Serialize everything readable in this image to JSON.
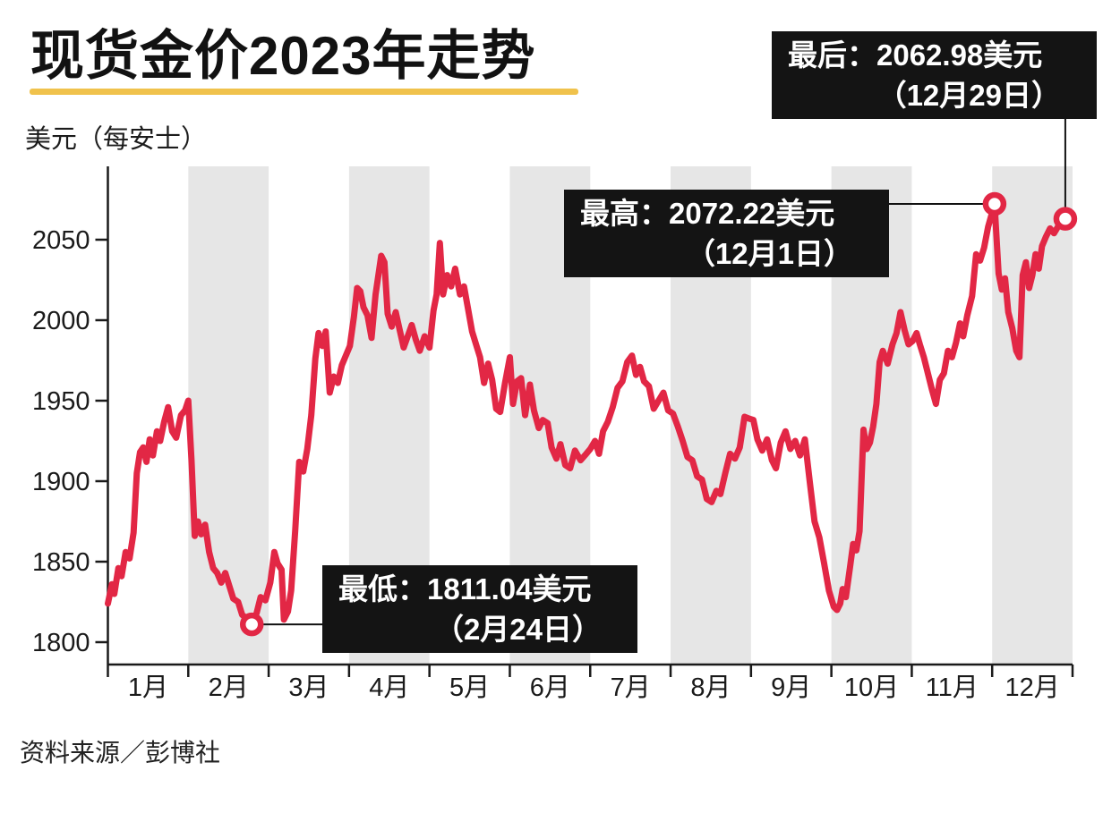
{
  "title": "现货金价2023年走势",
  "y_axis_unit": "美元（每安士）",
  "source": "资料来源／彭博社",
  "colors": {
    "line": "#e22745",
    "band": "#e6e6e6",
    "accent_underline": "#f0c24c",
    "annotation_bg": "#141414",
    "annotation_text": "#ffffff",
    "axis": "#1a1a1a"
  },
  "annotations": {
    "last": {
      "line1": "最后：2062.98美元",
      "line2": "（12月29日）"
    },
    "high": {
      "line1": "最高：2072.22美元",
      "line2": "（12月1日）"
    },
    "low": {
      "line1": "最低：1811.04美元",
      "line2": "（2月24日）"
    }
  },
  "chart_data": {
    "type": "line",
    "title": "现货金价2023年走势",
    "ylabel": "美元（每安士）",
    "xlabel": "",
    "legend": null,
    "grid": false,
    "x_categories": [
      "1月",
      "2月",
      "3月",
      "4月",
      "5月",
      "6月",
      "7月",
      "8月",
      "9月",
      "10月",
      "11月",
      "12月"
    ],
    "shaded_month_indices": [
      1,
      3,
      5,
      7,
      9,
      11
    ],
    "y_ticks": [
      1800,
      1850,
      1900,
      1950,
      2000,
      2050
    ],
    "ylim": [
      1786,
      2096
    ],
    "markers": [
      {
        "name": "low",
        "label": "最低",
        "value": 1811.04,
        "date": "2月24日",
        "x_month": 1.79
      },
      {
        "name": "high",
        "label": "最高",
        "value": 2072.22,
        "date": "12月1日",
        "x_month": 11.03
      },
      {
        "name": "last",
        "label": "最后",
        "value": 2062.98,
        "date": "12月29日",
        "x_month": 11.91
      }
    ],
    "series": [
      {
        "name": "现货金价",
        "x_month": [
          0.0,
          0.05,
          0.08,
          0.13,
          0.17,
          0.22,
          0.27,
          0.32,
          0.36,
          0.4,
          0.44,
          0.48,
          0.52,
          0.56,
          0.61,
          0.65,
          0.7,
          0.75,
          0.8,
          0.85,
          0.91,
          0.96,
          1.0,
          1.04,
          1.08,
          1.12,
          1.16,
          1.21,
          1.26,
          1.31,
          1.36,
          1.41,
          1.46,
          1.51,
          1.56,
          1.62,
          1.67,
          1.72,
          1.79,
          1.85,
          1.9,
          1.96,
          2.02,
          2.07,
          2.11,
          2.16,
          2.19,
          2.24,
          2.28,
          2.33,
          2.38,
          2.43,
          2.48,
          2.53,
          2.58,
          2.62,
          2.67,
          2.71,
          2.76,
          2.81,
          2.86,
          2.91,
          2.96,
          3.01,
          3.06,
          3.1,
          3.14,
          3.18,
          3.23,
          3.28,
          3.33,
          3.4,
          3.44,
          3.48,
          3.53,
          3.58,
          3.63,
          3.68,
          3.73,
          3.78,
          3.83,
          3.88,
          3.94,
          4.0,
          4.05,
          4.09,
          4.13,
          4.17,
          4.22,
          4.27,
          4.32,
          4.38,
          4.43,
          4.48,
          4.53,
          4.58,
          4.63,
          4.68,
          4.73,
          4.78,
          4.83,
          4.88,
          4.94,
          5.0,
          5.04,
          5.09,
          5.14,
          5.19,
          5.25,
          5.3,
          5.36,
          5.41,
          5.47,
          5.52,
          5.58,
          5.63,
          5.69,
          5.75,
          5.81,
          5.88,
          5.95,
          6.0,
          6.06,
          6.11,
          6.16,
          6.22,
          6.28,
          6.34,
          6.4,
          6.46,
          6.52,
          6.57,
          6.62,
          6.67,
          6.73,
          6.79,
          6.85,
          6.91,
          6.97,
          7.03,
          7.09,
          7.15,
          7.21,
          7.27,
          7.33,
          7.39,
          7.45,
          7.51,
          7.57,
          7.62,
          7.68,
          7.74,
          7.8,
          7.86,
          7.92,
          7.97,
          8.03,
          8.08,
          8.14,
          8.2,
          8.26,
          8.31,
          8.37,
          8.43,
          8.49,
          8.55,
          8.61,
          8.67,
          8.73,
          8.79,
          8.85,
          8.91,
          8.97,
          9.03,
          9.07,
          9.11,
          9.14,
          9.18,
          9.23,
          9.27,
          9.31,
          9.35,
          9.4,
          9.44,
          9.48,
          9.52,
          9.56,
          9.6,
          9.64,
          9.7,
          9.76,
          9.81,
          9.86,
          9.91,
          9.96,
          10.01,
          10.06,
          10.1,
          10.15,
          10.2,
          10.25,
          10.3,
          10.35,
          10.4,
          10.45,
          10.5,
          10.55,
          10.6,
          10.64,
          10.69,
          10.75,
          10.8,
          10.85,
          10.9,
          10.95,
          11.03,
          11.08,
          11.12,
          11.16,
          11.2,
          11.25,
          11.3,
          11.34,
          11.38,
          11.42,
          11.46,
          11.5,
          11.54,
          11.58,
          11.62,
          11.67,
          11.72,
          11.77,
          11.83,
          11.91
        ],
        "values": [
          1824,
          1836,
          1830,
          1846,
          1841,
          1856,
          1852,
          1868,
          1905,
          1918,
          1921,
          1912,
          1926,
          1916,
          1931,
          1925,
          1937,
          1946,
          1931,
          1927,
          1941,
          1944,
          1950,
          1913,
          1866,
          1875,
          1867,
          1873,
          1856,
          1846,
          1843,
          1837,
          1843,
          1835,
          1827,
          1825,
          1817,
          1815,
          1811.04,
          1818,
          1828,
          1826,
          1837,
          1856,
          1849,
          1845,
          1814,
          1819,
          1832,
          1869,
          1912,
          1906,
          1920,
          1941,
          1976,
          1992,
          1984,
          1993,
          1955,
          1965,
          1961,
          1972,
          1978,
          1984,
          2002,
          2020,
          2018,
          2008,
          2003,
          1989,
          2016,
          2040,
          2036,
          2004,
          1996,
          2005,
          1994,
          1983,
          1990,
          1997,
          1988,
          1981,
          1990,
          1983,
          2006,
          2016,
          2048,
          2016,
          2028,
          2021,
          2032,
          2016,
          2021,
          2007,
          1993,
          1985,
          1977,
          1961,
          1973,
          1963,
          1945,
          1943,
          1961,
          1977,
          1948,
          1962,
          1964,
          1941,
          1960,
          1944,
          1933,
          1938,
          1936,
          1921,
          1914,
          1923,
          1910,
          1908,
          1919,
          1913,
          1917,
          1920,
          1925,
          1917,
          1931,
          1937,
          1946,
          1958,
          1962,
          1974,
          1978,
          1966,
          1971,
          1962,
          1959,
          1945,
          1950,
          1955,
          1944,
          1942,
          1934,
          1925,
          1915,
          1913,
          1903,
          1901,
          1889,
          1887,
          1894,
          1892,
          1905,
          1917,
          1914,
          1921,
          1940,
          1939,
          1938,
          1926,
          1919,
          1926,
          1913,
          1908,
          1924,
          1931,
          1920,
          1925,
          1916,
          1926,
          1900,
          1875,
          1865,
          1849,
          1832,
          1822,
          1820,
          1824,
          1833,
          1828,
          1846,
          1861,
          1857,
          1869,
          1932,
          1920,
          1924,
          1934,
          1948,
          1974,
          1981,
          1973,
          1985,
          1992,
          2005,
          1994,
          1985,
          1987,
          1992,
          1985,
          1977,
          1967,
          1957,
          1948,
          1963,
          1967,
          1981,
          1977,
          1986,
          1998,
          1990,
          2003,
          2015,
          2041,
          2037,
          2045,
          2058,
          2072.22,
          2029,
          2019,
          2026,
          2005,
          1995,
          1981,
          1977,
          2028,
          2036,
          2020,
          2028,
          2041,
          2032,
          2046,
          2052,
          2057,
          2054,
          2059,
          2062.98
        ]
      }
    ]
  }
}
